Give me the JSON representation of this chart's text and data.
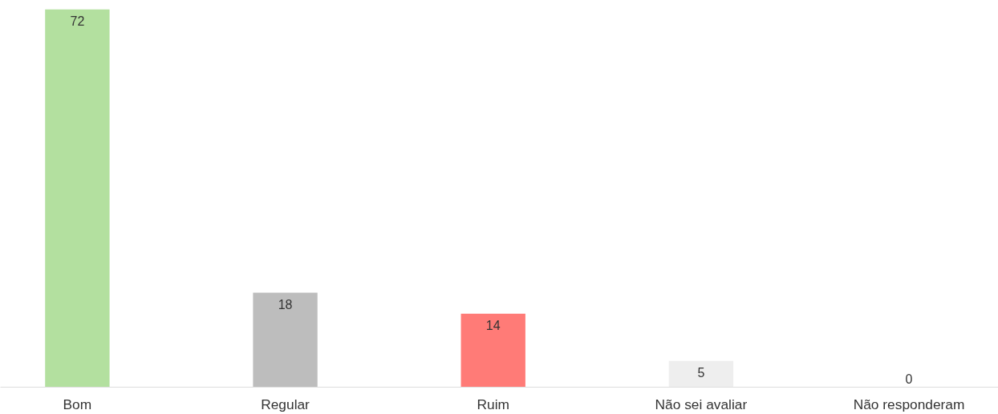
{
  "chart_data": {
    "type": "bar",
    "categories": [
      "Bom",
      "Regular",
      "Ruim",
      "Não sei avaliar",
      "Não responderam"
    ],
    "values": [
      72,
      18,
      14,
      5,
      0
    ],
    "colors": [
      "#b3e09f",
      "#bdbdbd",
      "#ff7b77",
      "#eeeeee",
      "#eeeeee"
    ],
    "data_labels": true,
    "grid": false
  }
}
